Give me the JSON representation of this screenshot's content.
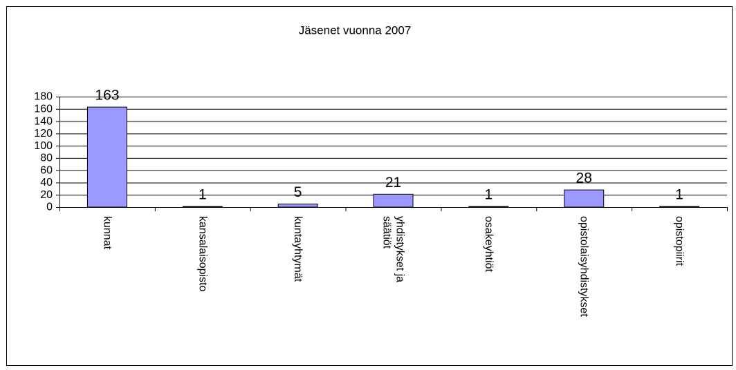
{
  "chart_data": {
    "type": "bar",
    "title": "Jäsenet vuonna 2007",
    "categories": [
      "kunnat",
      "kansalaisopisto",
      "kuntayhtymät",
      "yhdistykset ja säätiöt",
      "osakeyhtiöt",
      "opistolaisyhdistykset",
      "opistopiirit"
    ],
    "values": [
      163,
      1,
      5,
      21,
      1,
      28,
      1
    ],
    "color": "#9999ff",
    "ylim": [
      0,
      180
    ],
    "yticks": [
      0,
      20,
      40,
      60,
      80,
      100,
      120,
      140,
      160,
      180
    ],
    "grid": true
  }
}
